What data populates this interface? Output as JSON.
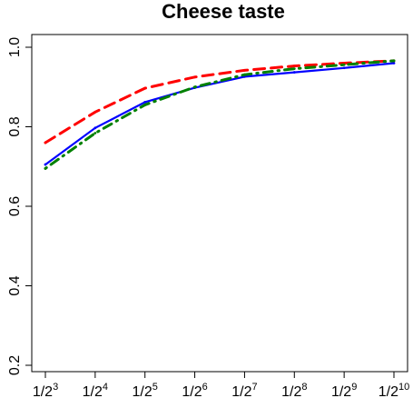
{
  "chart_data": {
    "type": "line",
    "title": "Cheese taste",
    "xlabel": "",
    "ylabel": "",
    "x_tick_labels": [
      {
        "base": "1/2",
        "exp": "3"
      },
      {
        "base": "1/2",
        "exp": "4"
      },
      {
        "base": "1/2",
        "exp": "5"
      },
      {
        "base": "1/2",
        "exp": "6"
      },
      {
        "base": "1/2",
        "exp": "7"
      },
      {
        "base": "1/2",
        "exp": "8"
      },
      {
        "base": "1/2",
        "exp": "9"
      },
      {
        "base": "1/2",
        "exp": "10"
      }
    ],
    "x": [
      3,
      4,
      5,
      6,
      7,
      8,
      9,
      10
    ],
    "ylim": [
      0.2,
      1.0
    ],
    "y_ticks": [
      "0.2",
      "0.4",
      "0.6",
      "0.8",
      "1.0"
    ],
    "grid": false,
    "series": [
      {
        "style": "solid",
        "color": "#0000ff",
        "values": [
          0.705,
          0.797,
          0.862,
          0.898,
          0.926,
          0.937,
          0.948,
          0.96
        ]
      },
      {
        "style": "dashed",
        "color": "#ff0000",
        "values": [
          0.76,
          0.837,
          0.897,
          0.925,
          0.942,
          0.953,
          0.96,
          0.966
        ]
      },
      {
        "style": "dotdash",
        "color": "#008000",
        "values": [
          0.695,
          0.784,
          0.855,
          0.9,
          0.931,
          0.946,
          0.956,
          0.966
        ]
      }
    ]
  }
}
